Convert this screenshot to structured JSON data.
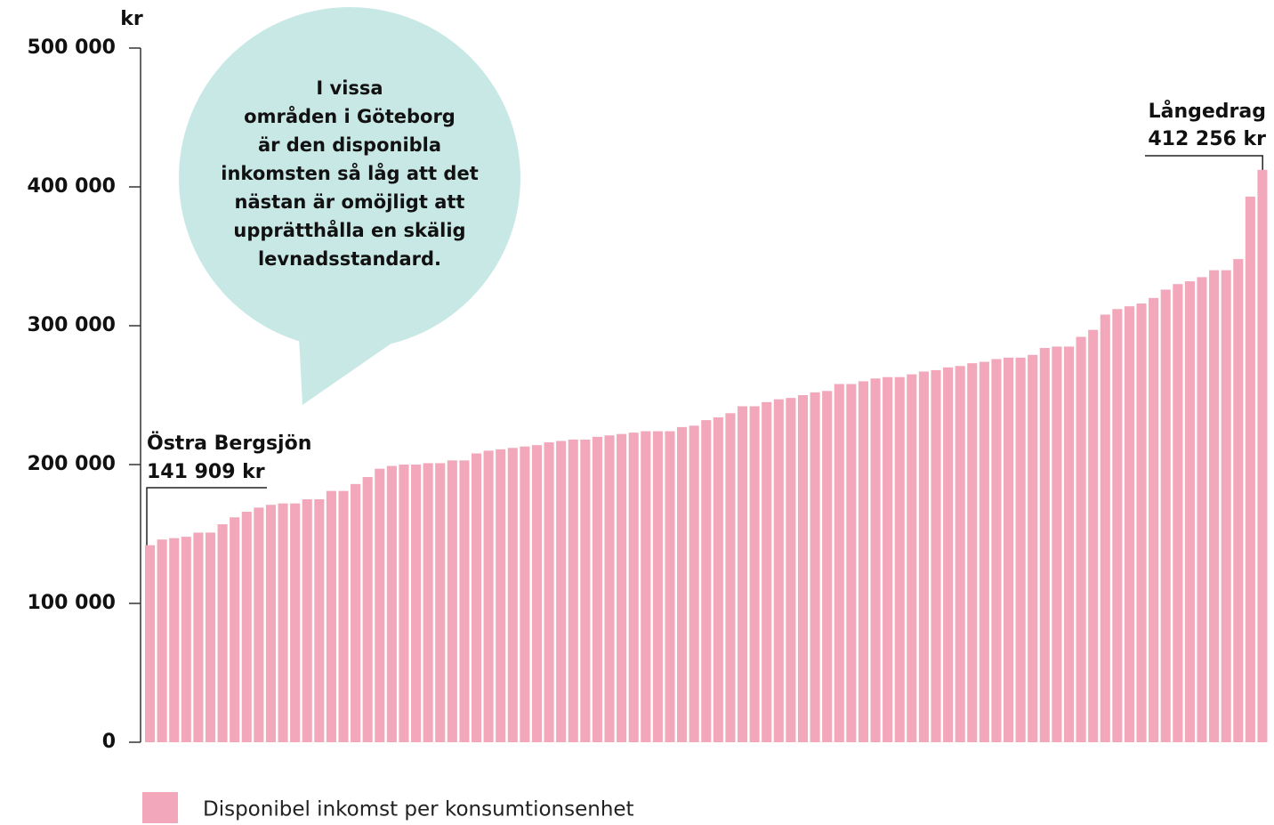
{
  "chart_data": {
    "type": "bar",
    "y_unit": "kr",
    "values": [
      141909,
      146000,
      147000,
      148000,
      151000,
      151000,
      157000,
      162000,
      166000,
      169000,
      171000,
      172000,
      172000,
      175000,
      175000,
      181000,
      181000,
      186000,
      191000,
      197000,
      199000,
      200000,
      200000,
      201000,
      201000,
      203000,
      203000,
      208000,
      210000,
      211000,
      212000,
      213000,
      214000,
      216000,
      217000,
      218000,
      218000,
      220000,
      221000,
      222000,
      223000,
      224000,
      224000,
      224000,
      227000,
      228000,
      232000,
      234000,
      237000,
      242000,
      242000,
      245000,
      247000,
      248000,
      250000,
      252000,
      253000,
      258000,
      258000,
      260000,
      262000,
      263000,
      263000,
      265000,
      267000,
      268000,
      270000,
      271000,
      273000,
      274000,
      276000,
      277000,
      277000,
      279000,
      284000,
      285000,
      285000,
      292000,
      297000,
      308000,
      312000,
      314000,
      316000,
      320000,
      326000,
      330000,
      332000,
      335000,
      340000,
      340000,
      348000,
      393000,
      412256
    ],
    "color": "#f2a8ba",
    "series_name": "Disponibel inkomst per konsumtionsenhet",
    "ylim": [
      0,
      500000
    ],
    "yticks": [
      0,
      {
        "value": 100000,
        "label": "100 000"
      },
      {
        "value": 200000,
        "label": "200 000"
      },
      {
        "value": 300000,
        "label": "300 000"
      },
      {
        "value": 400000,
        "label": "400 000"
      },
      {
        "value": 500000,
        "label": "500 000"
      }
    ],
    "annotations": [
      {
        "index": 0,
        "name": "Östra Bergsjön",
        "label": "141 909 kr"
      },
      {
        "index": 92,
        "name": "Långedrag",
        "label": "412 256 kr"
      }
    ],
    "bubble": [
      "I vissa",
      "områden i Göteborg",
      "är den disponibla",
      "inkomsten så låg att det",
      "nästan är omöjligt att",
      "upprätthålla en skälig",
      "levnadsstandard."
    ],
    "grid": false
  }
}
